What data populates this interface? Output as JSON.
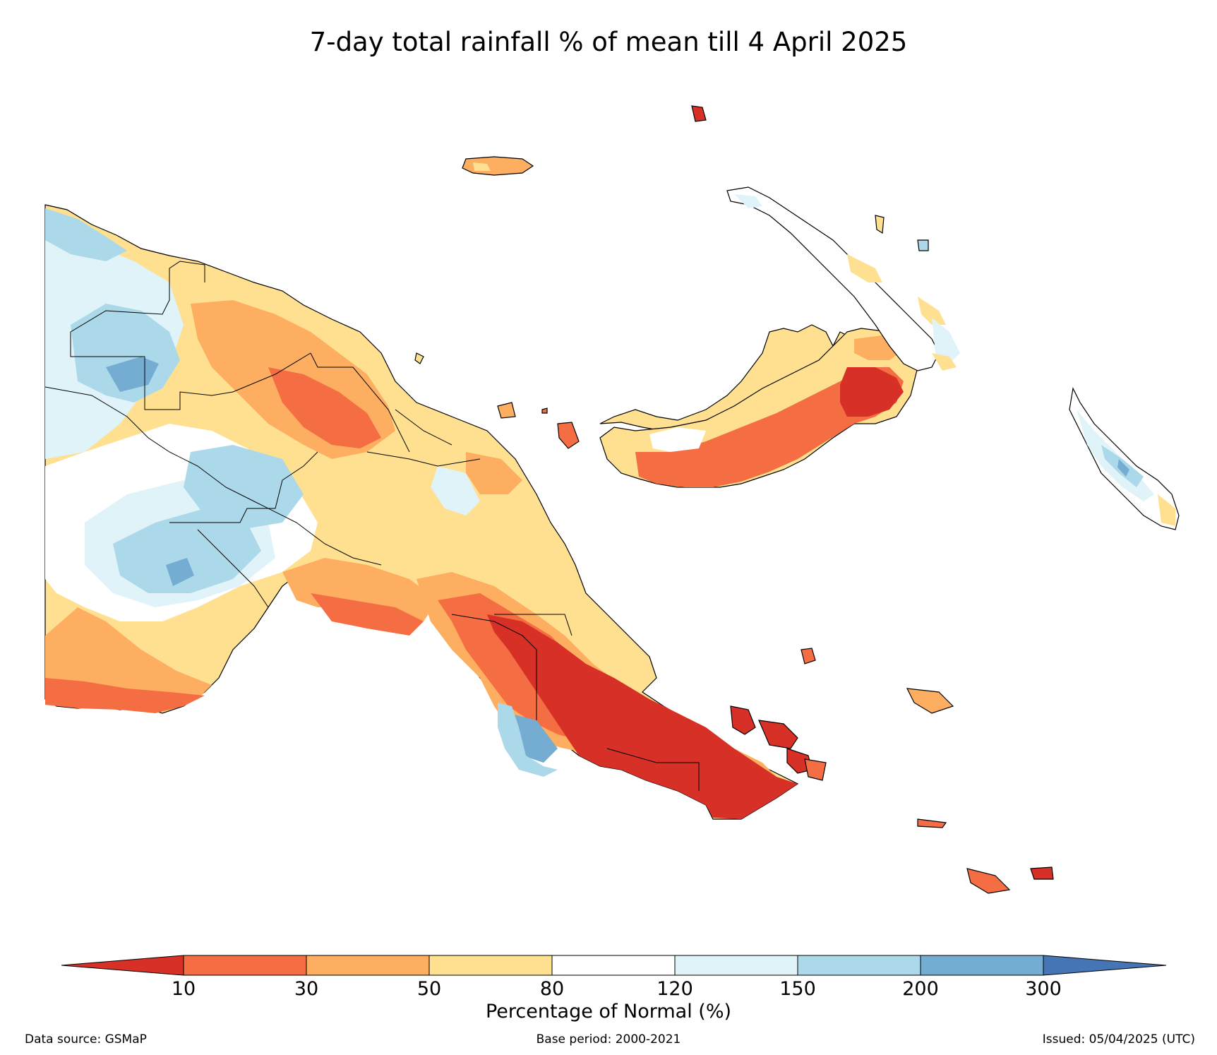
{
  "title": "7-day total rainfall % of mean till 4 April 2025",
  "colors": {
    "lt10": "#d73027",
    "b10_30": "#f46d43",
    "b30_50": "#fdae61",
    "b50_80": "#fee090",
    "b80_120": "#ffffff",
    "b120_150": "#e0f3f8",
    "b150_200": "#abd9e9",
    "b200_300": "#74add1",
    "gt300": "#4575b4",
    "outline": "#000000"
  },
  "colorbar": {
    "ticks": [
      "10",
      "30",
      "50",
      "80",
      "120",
      "150",
      "200",
      "300"
    ],
    "label": "Percentage of Normal (%)"
  },
  "footer": {
    "source": "Data source: GSMaP",
    "base_period": "Base period: 2000-2021",
    "issued": "Issued: 05/04/2025 (UTC)"
  }
}
